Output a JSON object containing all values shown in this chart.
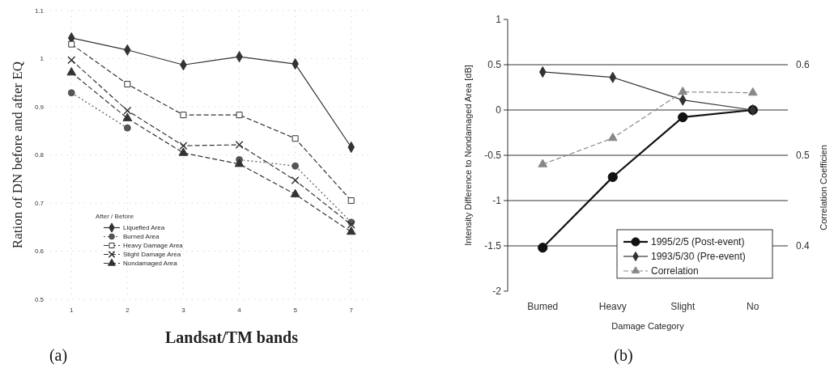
{
  "chart_data": [
    {
      "type": "line",
      "xlabel": "Landsat/TM bands",
      "ylabel": "Ration of DN before and after EQ",
      "legend_title": "After / Before",
      "annotations": [
        "(a)"
      ],
      "categories": [
        "1",
        "2",
        "3",
        "4",
        "5",
        "7"
      ],
      "ylim": [
        0.5,
        1.1
      ],
      "yticks": [
        0.5,
        0.6,
        0.7,
        0.8,
        0.9,
        1,
        1.1
      ],
      "grid": true,
      "legend": "bottom left",
      "series": [
        {
          "name": "Liquefied Area",
          "color": "#333333",
          "marker": "diamond",
          "line_style": "solid",
          "values": [
            1.043,
            1.018,
            0.987,
            1.004,
            0.989,
            0.816
          ]
        },
        {
          "name": "Burned Area",
          "color": "#555555",
          "marker": "circle",
          "line_style": "dotted",
          "values": [
            0.929,
            0.856,
            null,
            0.79,
            0.777,
            0.66
          ]
        },
        {
          "name": "Heavy Damage Area",
          "color": "#333333",
          "marker": "square",
          "line_style": "dashed",
          "values": [
            1.03,
            0.947,
            0.883,
            0.883,
            0.834,
            0.705
          ]
        },
        {
          "name": "Slight Damage Area",
          "color": "#333333",
          "marker": "cross",
          "line_style": "dashed",
          "values": [
            0.997,
            0.892,
            0.819,
            0.821,
            0.747,
            0.655
          ]
        },
        {
          "name": "Nondamaged Area",
          "color": "#333333",
          "marker": "triangle",
          "line_style": "dashed",
          "values": [
            0.971,
            0.876,
            0.804,
            0.781,
            0.718,
            0.64
          ]
        }
      ]
    },
    {
      "type": "line",
      "xlabel": "Damage Category",
      "ylabel": "Intensity Difference to Nondamaged Area [dB]",
      "y2label": "Correlation Coefficien",
      "annotations": [
        "(b)"
      ],
      "categories": [
        "Bumed",
        "Heavy",
        "Slight",
        "No"
      ],
      "ylim": [
        -2,
        1
      ],
      "yticks": [
        -2,
        -1.5,
        -1,
        -0.5,
        0,
        0.5,
        1
      ],
      "y2lim": [
        0.35,
        0.65
      ],
      "y2ticks": [
        0.4,
        0.5,
        0.6
      ],
      "grid": "y",
      "legend": "bottom right",
      "series": [
        {
          "name": "1995/2/5 (Post-event)",
          "color": "#111111",
          "marker": "circle",
          "line_style": "solid",
          "values": [
            -1.52,
            -0.74,
            -0.08,
            0
          ]
        },
        {
          "name": "1993/5/30 (Pre-event)",
          "color": "#333333",
          "marker": "diamond",
          "line_style": "solid",
          "values": [
            0.42,
            0.36,
            0.11,
            0
          ]
        },
        {
          "name": "Correlation",
          "color": "#888888",
          "marker": "triangle",
          "line_style": "dashed",
          "axis": "y2",
          "values": [
            0.49,
            0.519,
            0.57,
            0.569
          ]
        }
      ]
    }
  ]
}
